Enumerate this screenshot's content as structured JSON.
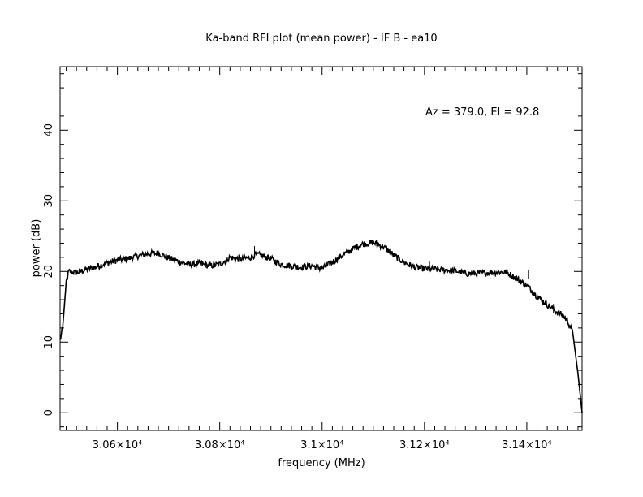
{
  "chart_data": {
    "type": "line",
    "title": "Ka-band RFI plot (mean power) - IF B - ea10",
    "xlabel": "frequency (MHz)",
    "ylabel": "power (dB)",
    "annotation": "Az = 379.0, El = 92.8",
    "xlim": [
      30488,
      31508
    ],
    "ylim": [
      -2.5,
      49
    ],
    "x_ticks": [
      30600,
      30800,
      31000,
      31200,
      31400
    ],
    "x_tick_labels": [
      "3.06×10⁴",
      "3.08×10⁴",
      "3.1×10⁴",
      "3.12×10⁴",
      "3.14×10⁴"
    ],
    "y_ticks": [
      0,
      10,
      20,
      30,
      40
    ],
    "y_tick_labels": [
      "0",
      "10",
      "20",
      "30",
      "40"
    ],
    "grid": false,
    "series": [
      {
        "color": "#000000",
        "x": [
          30488,
          30493,
          30500,
          30505,
          30520,
          30540,
          30560,
          30580,
          30600,
          30620,
          30640,
          30660,
          30680,
          30700,
          30720,
          30740,
          30760,
          30780,
          30800,
          30820,
          30840,
          30860,
          30870,
          30880,
          30900,
          30920,
          30940,
          30960,
          30980,
          31000,
          31020,
          31040,
          31060,
          31080,
          31100,
          31120,
          31140,
          31160,
          31180,
          31200,
          31220,
          31240,
          31260,
          31280,
          31300,
          31320,
          31340,
          31360,
          31380,
          31400,
          31420,
          31440,
          31460,
          31470,
          31480,
          31490,
          31500,
          31508
        ],
        "y": [
          10.2,
          12,
          18.5,
          20.0,
          19.8,
          20.3,
          20.7,
          21.2,
          21.6,
          21.8,
          22.2,
          22.5,
          22.6,
          21.9,
          21.4,
          21.0,
          21.1,
          20.8,
          21.0,
          22.0,
          21.7,
          22.0,
          22.4,
          22.3,
          21.8,
          21.0,
          20.8,
          20.6,
          20.8,
          20.4,
          21.3,
          22.3,
          23.2,
          23.9,
          24.1,
          23.5,
          22.3,
          21.3,
          20.6,
          20.4,
          20.3,
          20.2,
          20.1,
          19.7,
          19.7,
          19.8,
          19.9,
          19.9,
          19.0,
          18.0,
          16.5,
          15.3,
          14.2,
          13.8,
          13.0,
          11.2,
          5.5,
          0.0
        ]
      }
    ]
  }
}
